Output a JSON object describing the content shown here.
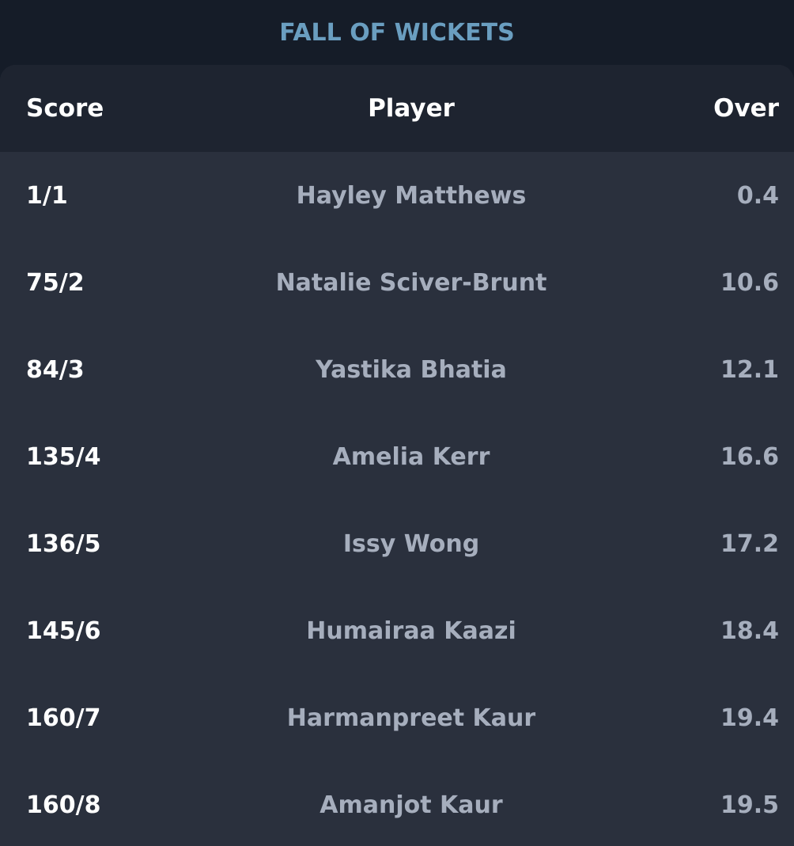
{
  "title": "FALL OF WICKETS",
  "columns": {
    "score": "Score",
    "player": "Player",
    "over": "Over"
  },
  "rows": [
    {
      "score": "1/1",
      "player": "Hayley Matthews",
      "over": "0.4"
    },
    {
      "score": "75/2",
      "player": "Natalie Sciver-Brunt",
      "over": "10.6"
    },
    {
      "score": "84/3",
      "player": "Yastika Bhatia",
      "over": "12.1"
    },
    {
      "score": "135/4",
      "player": "Amelia Kerr",
      "over": "16.6"
    },
    {
      "score": "136/5",
      "player": "Issy Wong",
      "over": "17.2"
    },
    {
      "score": "145/6",
      "player": "Humairaa Kaazi",
      "over": "18.4"
    },
    {
      "score": "160/7",
      "player": "Harmanpreet Kaur",
      "over": "19.4"
    },
    {
      "score": "160/8",
      "player": "Amanjot Kaur",
      "over": "19.5"
    }
  ]
}
